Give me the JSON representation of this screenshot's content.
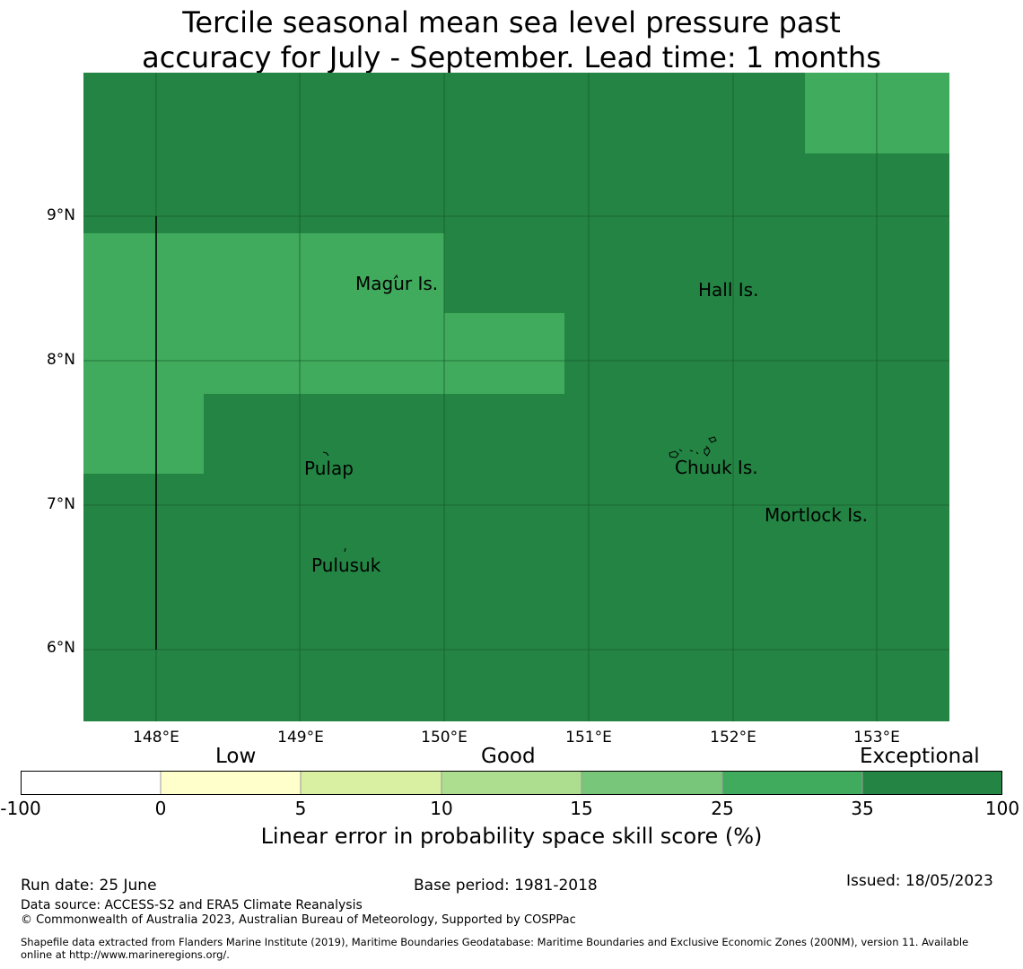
{
  "title": {
    "line1": "Tercile seasonal mean sea level pressure past",
    "line2": "accuracy for July - September. Lead time: 1 months"
  },
  "map": {
    "lat_labels": [
      "9°N",
      "8°N",
      "7°N",
      "6°N"
    ],
    "lon_labels": [
      "148°E",
      "149°E",
      "150°E",
      "151°E",
      "152°E",
      "153°E"
    ],
    "places": [
      {
        "name": "Magur Is."
      },
      {
        "name": "Hall Is."
      },
      {
        "name": "Pulap"
      },
      {
        "name": "Chuuk Is."
      },
      {
        "name": "Mortlock Is."
      },
      {
        "name": "Pulusuk"
      }
    ],
    "colors": {
      "skill_35_100": "#238443",
      "skill_25_35": "#41ab5d"
    }
  },
  "legend": {
    "categories": [
      "Low",
      "Good",
      "Exceptional"
    ],
    "ticks": [
      "-100",
      "0",
      "5",
      "10",
      "15",
      "25",
      "35",
      "100"
    ],
    "colors": [
      "#ffffff",
      "#ffffcc",
      "#d9f0a3",
      "#addd8e",
      "#78c679",
      "#41ab5d",
      "#238443"
    ],
    "label": "Linear error in probability space skill score (%)"
  },
  "footer": {
    "run_date": "Run date: 25 June",
    "base_period": "Base period: 1981-2018",
    "issued": "Issued: 18/05/2023",
    "data_source": "Data source: ACCESS-S2 and ERA5 Climate Reanalysis",
    "copyright": "© Commonwealth of Australia 2023, Australian Bureau of Meteorology, Supported by COSPPac",
    "shapefile_line1": "Shapefile data extracted from Flanders Marine Institute (2019), Maritime Boundaries Geodatabase: Maritime Boundaries and Exclusive Economic Zones (200NM), version 11. Available",
    "shapefile_line2": "online at http://www.marineregions.org/."
  }
}
